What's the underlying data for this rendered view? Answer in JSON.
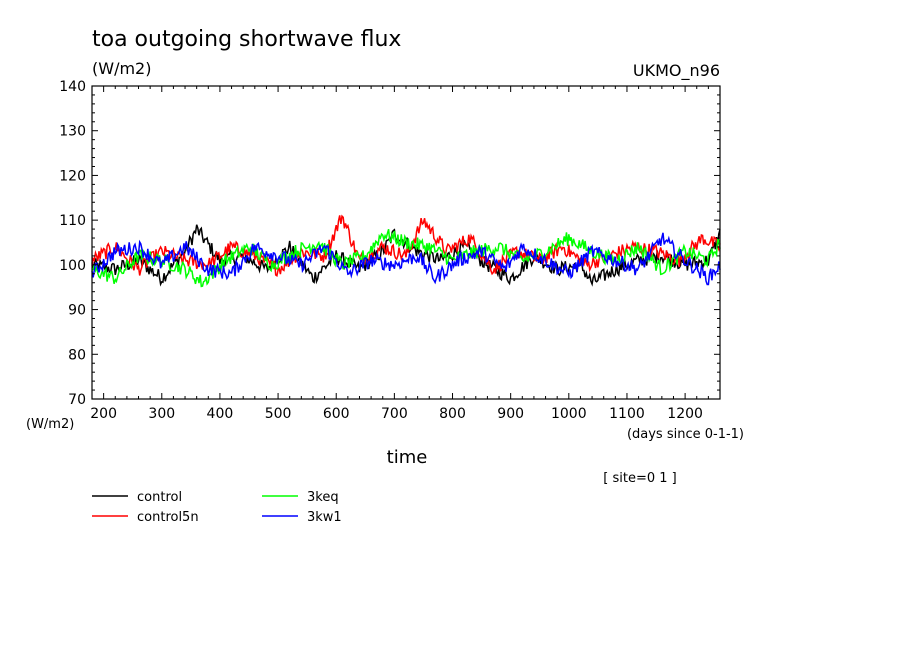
{
  "chart_data": {
    "type": "line",
    "title": "toa outgoing shortwave flux",
    "subtitle": "(W/m2)",
    "model": "UKMO_n96",
    "ylabel": "(W/m2)",
    "xlabel": "time",
    "xunit": "(days since 0-1-1)",
    "site": "[ site=0 1 ]",
    "xlim": [
      180,
      1260
    ],
    "ylim": [
      70,
      140
    ],
    "xticks": [
      200,
      300,
      400,
      500,
      600,
      700,
      800,
      900,
      1000,
      1100,
      1200
    ],
    "yticks": [
      70,
      80,
      90,
      100,
      110,
      120,
      130,
      140
    ],
    "grid": false,
    "legend_position": "bottom-left",
    "series": [
      {
        "name": "control",
        "color": "#000000",
        "x": [
          180,
          220,
          260,
          300,
          340,
          360,
          400,
          440,
          480,
          520,
          560,
          600,
          640,
          680,
          700,
          740,
          780,
          820,
          860,
          900,
          940,
          980,
          1020,
          1040,
          1080,
          1120,
          1160,
          1200,
          1240,
          1260
        ],
        "values": [
          100,
          99,
          101,
          97,
          103,
          108,
          101,
          102,
          99,
          104,
          97,
          102,
          99,
          103,
          107,
          103,
          101,
          104,
          100,
          97,
          102,
          99,
          100,
          96,
          99,
          101,
          102,
          100,
          101,
          107
        ]
      },
      {
        "name": "control5n",
        "color": "#ff0000",
        "x": [
          180,
          220,
          260,
          300,
          340,
          380,
          420,
          460,
          500,
          540,
          580,
          610,
          640,
          680,
          720,
          750,
          790,
          830,
          870,
          910,
          950,
          990,
          1030,
          1070,
          1110,
          1150,
          1190,
          1230,
          1260
        ],
        "values": [
          101,
          104,
          99,
          103,
          101,
          100,
          104,
          102,
          99,
          103,
          102,
          111,
          101,
          104,
          102,
          110,
          103,
          106,
          99,
          103,
          101,
          104,
          100,
          102,
          104,
          103,
          101,
          106,
          104
        ]
      },
      {
        "name": "3keq",
        "color": "#00ff00",
        "x": [
          180,
          220,
          260,
          300,
          340,
          370,
          410,
          450,
          490,
          530,
          570,
          610,
          650,
          680,
          720,
          760,
          800,
          840,
          880,
          920,
          960,
          1000,
          1040,
          1080,
          1120,
          1160,
          1200,
          1240,
          1260
        ],
        "values": [
          99,
          97,
          102,
          101,
          99,
          96,
          101,
          104,
          100,
          103,
          105,
          100,
          102,
          107,
          105,
          104,
          101,
          103,
          104,
          101,
          103,
          106,
          103,
          101,
          104,
          99,
          103,
          101,
          105
        ]
      },
      {
        "name": "3kw1",
        "color": "#0000ff",
        "x": [
          180,
          220,
          260,
          300,
          340,
          380,
          420,
          460,
          500,
          540,
          580,
          620,
          660,
          700,
          740,
          770,
          810,
          850,
          890,
          920,
          960,
          1000,
          1040,
          1080,
          1120,
          1160,
          1200,
          1240,
          1260
        ],
        "values": [
          98,
          103,
          104,
          100,
          104,
          99,
          98,
          104,
          102,
          100,
          104,
          98,
          101,
          100,
          102,
          97,
          101,
          103,
          99,
          104,
          101,
          98,
          103,
          101,
          99,
          106,
          101,
          97,
          100
        ]
      }
    ]
  }
}
